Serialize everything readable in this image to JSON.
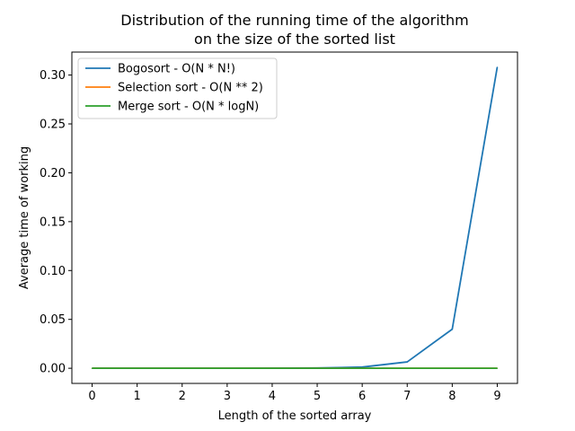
{
  "chart_data": {
    "type": "line",
    "title_lines": [
      "Distribution of the running time of the algorithm",
      "on the size of the sorted list"
    ],
    "xlabel": "Length of the sorted array",
    "ylabel": "Average time of working",
    "xlim": [
      -0.45,
      9.45
    ],
    "ylim": [
      -0.0155,
      0.3235
    ],
    "x_ticks": [
      0,
      1,
      2,
      3,
      4,
      5,
      6,
      7,
      8,
      9
    ],
    "x_tick_labels": [
      "0",
      "1",
      "2",
      "3",
      "4",
      "5",
      "6",
      "7",
      "8",
      "9"
    ],
    "y_ticks": [
      0.0,
      0.05,
      0.1,
      0.15,
      0.2,
      0.25,
      0.3
    ],
    "y_tick_labels": [
      "0.00",
      "0.05",
      "0.10",
      "0.15",
      "0.20",
      "0.25",
      "0.30"
    ],
    "x": [
      0,
      1,
      2,
      3,
      4,
      5,
      6,
      7,
      8,
      9
    ],
    "series": [
      {
        "name": "Bogosort - O(N * N!)",
        "color": "#1f77b4",
        "values": [
          0,
          0,
          0,
          0,
          0.0001,
          0.0003,
          0.0012,
          0.0065,
          0.04,
          0.308
        ]
      },
      {
        "name": "Selection sort - O(N ** 2)",
        "color": "#ff7f0e",
        "values": [
          0,
          0,
          0,
          0,
          0,
          0,
          0,
          0,
          0,
          0
        ]
      },
      {
        "name": "Merge sort - O(N * logN)",
        "color": "#2ca02c",
        "values": [
          0,
          0,
          0,
          0,
          0,
          0,
          0,
          0,
          0,
          0
        ]
      }
    ],
    "legend_position": "top-left",
    "grid": false
  }
}
